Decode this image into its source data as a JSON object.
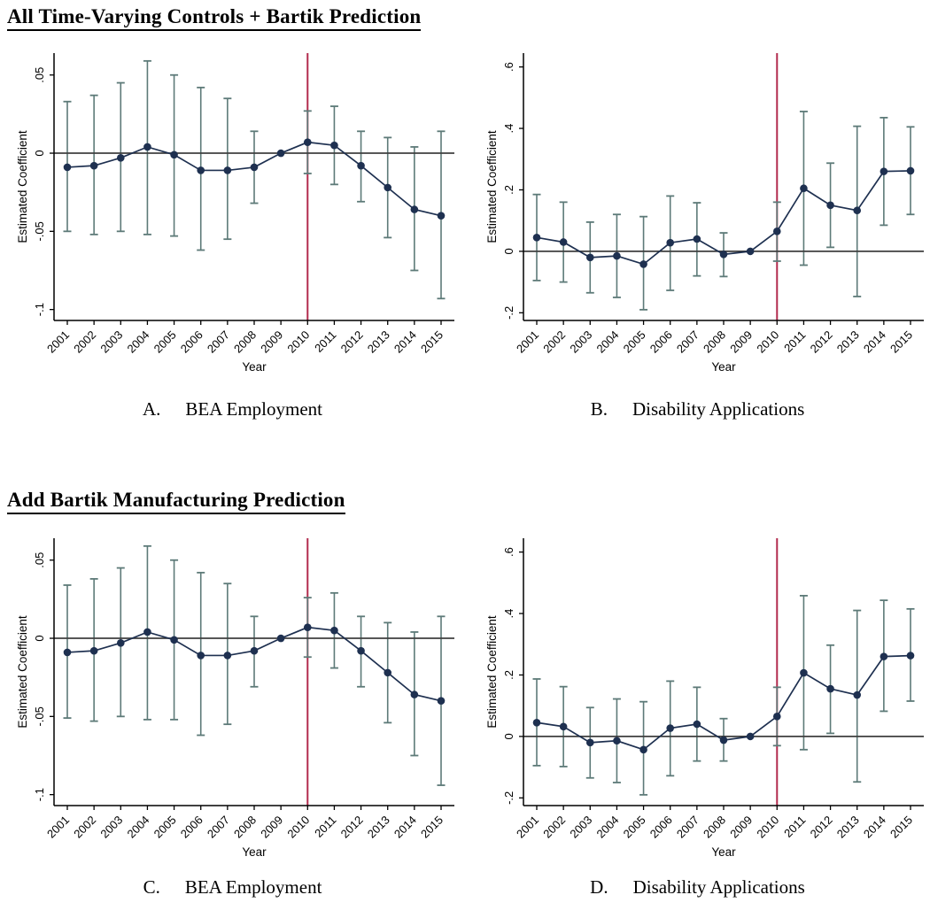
{
  "page": {
    "background": "#ffffff",
    "sections": [
      {
        "title": "All Time-Varying Controls + Bartik Prediction"
      },
      {
        "title": "Add Bartik Manufacturing Prediction"
      }
    ],
    "captions": [
      {
        "letter": "A.",
        "text": "BEA Employment"
      },
      {
        "letter": "B.",
        "text": "Disability Applications"
      },
      {
        "letter": "C.",
        "text": "BEA Employment"
      },
      {
        "letter": "D.",
        "text": "Disability Applications"
      }
    ]
  },
  "colors": {
    "series": "#1e3050",
    "ci": "#5d7a78",
    "vline": "#b22b4d",
    "hline": "#3f3f3f",
    "axis": "#000000"
  },
  "chart_data": [
    {
      "type": "line",
      "panel": "A",
      "title": "BEA Employment",
      "section": "All Time-Varying Controls + Bartik Prediction",
      "xlabel": "Year",
      "ylabel": "Estimated Coefficient",
      "x": [
        2001,
        2002,
        2003,
        2004,
        2005,
        2006,
        2007,
        2008,
        2009,
        2010,
        2011,
        2012,
        2013,
        2014,
        2015
      ],
      "series": [
        {
          "name": "estimate",
          "values": [
            -0.009,
            -0.008,
            -0.003,
            0.004,
            -0.001,
            -0.011,
            -0.011,
            -0.009,
            0,
            0.007,
            0.005,
            -0.008,
            -0.022,
            -0.036,
            -0.04
          ]
        }
      ],
      "ci_low": [
        -0.05,
        -0.052,
        -0.05,
        -0.052,
        -0.053,
        -0.062,
        -0.055,
        -0.032,
        0,
        -0.013,
        -0.02,
        -0.031,
        -0.054,
        -0.075,
        -0.093
      ],
      "ci_high": [
        0.033,
        0.037,
        0.045,
        0.059,
        0.05,
        0.042,
        0.035,
        0.014,
        0,
        0.027,
        0.03,
        0.014,
        0.01,
        0.004,
        0.014
      ],
      "reference_x": 2009,
      "vline_x": 2010,
      "hline_y": 0,
      "ylim": [
        -0.107,
        0.064
      ],
      "yticks": [
        0.05,
        0,
        -0.05,
        -0.1
      ],
      "ytick_labels": [
        ".05",
        "0",
        "-.05",
        "-.1"
      ],
      "grid": false,
      "legend": "none"
    },
    {
      "type": "line",
      "panel": "B",
      "title": "Disability Applications",
      "section": "All Time-Varying Controls + Bartik Prediction",
      "xlabel": "Year",
      "ylabel": "Estimated Coefficient",
      "x": [
        2001,
        2002,
        2003,
        2004,
        2005,
        2006,
        2007,
        2008,
        2009,
        2010,
        2011,
        2012,
        2013,
        2014,
        2015
      ],
      "series": [
        {
          "name": "estimate",
          "values": [
            0.045,
            0.03,
            -0.02,
            -0.015,
            -0.042,
            0.028,
            0.04,
            -0.01,
            0,
            0.065,
            0.205,
            0.15,
            0.133,
            0.26,
            0.262
          ]
        }
      ],
      "ci_low": [
        -0.095,
        -0.1,
        -0.135,
        -0.15,
        -0.19,
        -0.127,
        -0.08,
        -0.082,
        0,
        -0.032,
        -0.045,
        0.013,
        -0.147,
        0.085,
        0.12
      ],
      "ci_high": [
        0.185,
        0.16,
        0.095,
        0.12,
        0.113,
        0.18,
        0.158,
        0.06,
        0,
        0.16,
        0.455,
        0.287,
        0.407,
        0.435,
        0.405
      ],
      "reference_x": 2009,
      "vline_x": 2010,
      "hline_y": 0,
      "ylim": [
        -0.225,
        0.645
      ],
      "yticks": [
        0.6,
        0.4,
        0.2,
        0,
        -0.2
      ],
      "ytick_labels": [
        ".6",
        ".4",
        ".2",
        "0",
        "-.2"
      ],
      "grid": false,
      "legend": "none"
    },
    {
      "type": "line",
      "panel": "C",
      "title": "BEA Employment",
      "section": "Add Bartik Manufacturing Prediction",
      "xlabel": "Year",
      "ylabel": "Estimated Coefficient",
      "x": [
        2001,
        2002,
        2003,
        2004,
        2005,
        2006,
        2007,
        2008,
        2009,
        2010,
        2011,
        2012,
        2013,
        2014,
        2015
      ],
      "series": [
        {
          "name": "estimate",
          "values": [
            -0.009,
            -0.008,
            -0.003,
            0.004,
            -0.001,
            -0.011,
            -0.011,
            -0.008,
            0,
            0.007,
            0.005,
            -0.008,
            -0.022,
            -0.036,
            -0.04
          ]
        }
      ],
      "ci_low": [
        -0.051,
        -0.053,
        -0.05,
        -0.052,
        -0.052,
        -0.062,
        -0.055,
        -0.031,
        0,
        -0.012,
        -0.019,
        -0.031,
        -0.054,
        -0.075,
        -0.094
      ],
      "ci_high": [
        0.034,
        0.038,
        0.045,
        0.059,
        0.05,
        0.042,
        0.035,
        0.014,
        0,
        0.026,
        0.029,
        0.014,
        0.01,
        0.004,
        0.014
      ],
      "reference_x": 2009,
      "vline_x": 2010,
      "hline_y": 0,
      "ylim": [
        -0.107,
        0.064
      ],
      "yticks": [
        0.05,
        0,
        -0.05,
        -0.1
      ],
      "ytick_labels": [
        ".05",
        "0",
        "-.05",
        "-.1"
      ],
      "grid": false,
      "legend": "none"
    },
    {
      "type": "line",
      "panel": "D",
      "title": "Disability Applications",
      "section": "Add Bartik Manufacturing Prediction",
      "xlabel": "Year",
      "ylabel": "Estimated Coefficient",
      "x": [
        2001,
        2002,
        2003,
        2004,
        2005,
        2006,
        2007,
        2008,
        2009,
        2010,
        2011,
        2012,
        2013,
        2014,
        2015
      ],
      "series": [
        {
          "name": "estimate",
          "values": [
            0.045,
            0.032,
            -0.02,
            -0.014,
            -0.043,
            0.027,
            0.04,
            -0.012,
            0,
            0.065,
            0.207,
            0.155,
            0.135,
            0.26,
            0.263
          ]
        }
      ],
      "ci_low": [
        -0.095,
        -0.098,
        -0.135,
        -0.15,
        -0.19,
        -0.128,
        -0.08,
        -0.08,
        0,
        -0.03,
        -0.043,
        0.01,
        -0.148,
        0.082,
        0.115
      ],
      "ci_high": [
        0.187,
        0.162,
        0.094,
        0.122,
        0.113,
        0.18,
        0.16,
        0.058,
        0,
        0.16,
        0.458,
        0.297,
        0.41,
        0.443,
        0.415
      ],
      "reference_x": 2009,
      "vline_x": 2010,
      "hline_y": 0,
      "ylim": [
        -0.225,
        0.645
      ],
      "yticks": [
        0.6,
        0.4,
        0.2,
        0,
        -0.2
      ],
      "ytick_labels": [
        ".6",
        ".4",
        ".2",
        "0",
        "-.2"
      ],
      "grid": false,
      "legend": "none"
    }
  ]
}
